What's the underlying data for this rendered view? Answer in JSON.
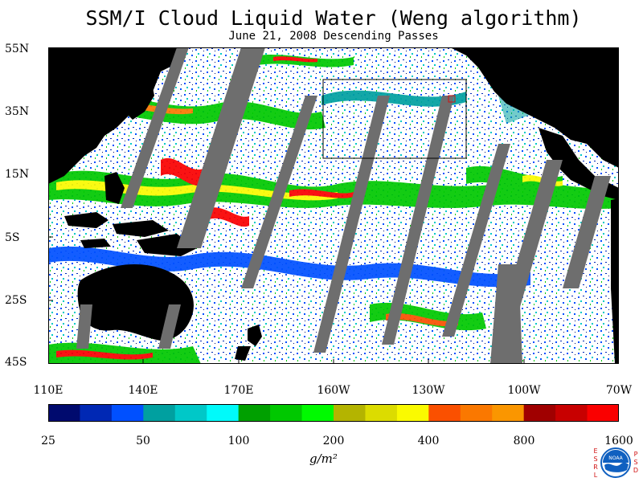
{
  "title": "SSM/I Cloud Liquid Water (Weng algorithm)",
  "subtitle": "June 21, 2008  Descending Passes",
  "map": {
    "projection": "cylindrical",
    "lat_range": [
      "45S",
      "55N"
    ],
    "lon_range": [
      "110E",
      "70W"
    ],
    "lat_labels": [
      "55N",
      "35N",
      "15N",
      "5S",
      "25S",
      "45S"
    ],
    "lon_labels": [
      "110E",
      "140E",
      "170E",
      "160W",
      "130W",
      "100W",
      "70W"
    ],
    "land_color": "#000000",
    "no_data_color": "#6e6e6e",
    "ocean_clear_color": "#ffffff",
    "box_region": "subtropical north-east Pacific outline"
  },
  "colorbar": {
    "colors": [
      "#000a6e",
      "#0028b4",
      "#0050ff",
      "#00a0a0",
      "#00c8c8",
      "#00fafa",
      "#00a000",
      "#00c800",
      "#00fa00",
      "#b4b400",
      "#dcdc00",
      "#fafa00",
      "#fa5000",
      "#fa7800",
      "#fa9600",
      "#a00000",
      "#c80000",
      "#fa0000"
    ],
    "labels": [
      "25",
      "50",
      "100",
      "200",
      "400",
      "800",
      "1600"
    ],
    "units": "g/m²"
  },
  "logo": {
    "name": "NOAA",
    "left_letters": [
      "E",
      "S",
      "R",
      "L"
    ],
    "right_letters": [
      "P",
      "S",
      "D"
    ],
    "accent": "#d01010",
    "circle_color": "#1060c0"
  }
}
